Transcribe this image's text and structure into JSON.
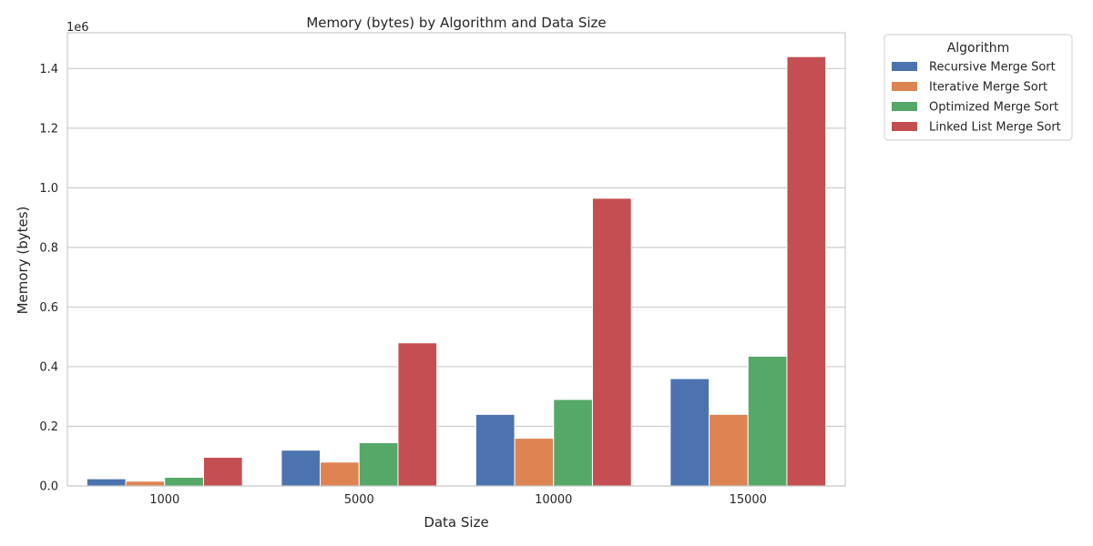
{
  "chart_data": {
    "type": "bar",
    "title": "Memory (bytes) by Algorithm and Data Size",
    "xlabel": "Data Size",
    "ylabel": "Memory (bytes)",
    "y_offset_label": "1e6",
    "categories": [
      "1000",
      "5000",
      "10000",
      "15000"
    ],
    "ylim": [
      0,
      1.52
    ],
    "yticks": [
      0.0,
      0.2,
      0.4,
      0.6,
      0.8,
      1.0,
      1.2,
      1.4
    ],
    "ytick_labels": [
      "0.0",
      "0.2",
      "0.4",
      "0.6",
      "0.8",
      "1.0",
      "1.2",
      "1.4"
    ],
    "grid": true,
    "legend": {
      "title": "Algorithm",
      "placement": "outside-top-right"
    },
    "series": [
      {
        "name": "Recursive Merge Sort",
        "color": "#4c72b0",
        "values": [
          0.024,
          0.12,
          0.24,
          0.36
        ]
      },
      {
        "name": "Iterative Merge Sort",
        "color": "#dd8452",
        "values": [
          0.016,
          0.08,
          0.16,
          0.24
        ]
      },
      {
        "name": "Optimized Merge Sort",
        "color": "#55a868",
        "values": [
          0.029,
          0.145,
          0.29,
          0.435
        ]
      },
      {
        "name": "Linked List Merge Sort",
        "color": "#c44e52",
        "values": [
          0.096,
          0.48,
          0.965,
          1.44
        ]
      }
    ]
  }
}
